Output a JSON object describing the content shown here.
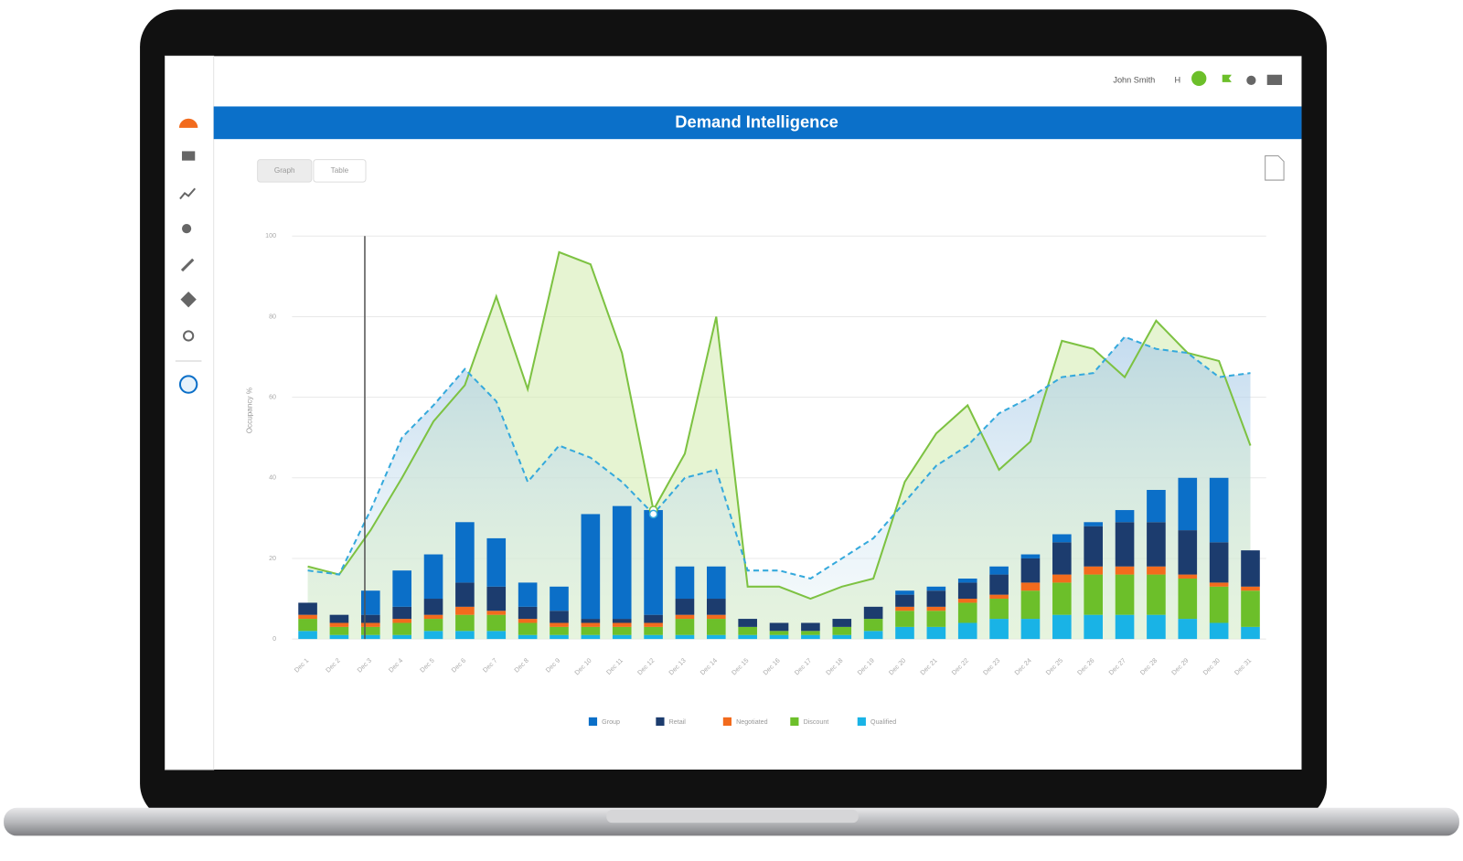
{
  "header": {
    "user": "John Smith",
    "initial": "H",
    "title": "Demand Intelligence",
    "tabs": [
      "Graph",
      "Table"
    ]
  },
  "chart_data": {
    "type": "bar",
    "y_label": "Occupancy %",
    "categories": [
      "Dec 1",
      "Dec 2",
      "Dec 3",
      "Dec 4",
      "Dec 5",
      "Dec 6",
      "Dec 7",
      "Dec 8",
      "Dec 9",
      "Dec 10",
      "Dec 11",
      "Dec 12",
      "Dec 13",
      "Dec 14",
      "Dec 15",
      "Dec 16",
      "Dec 17",
      "Dec 18",
      "Dec 19",
      "Dec 20",
      "Dec 21",
      "Dec 22",
      "Dec 23",
      "Dec 24",
      "Dec 25",
      "Dec 26",
      "Dec 27",
      "Dec 28",
      "Dec 29",
      "Dec 30",
      "Dec 31"
    ],
    "ylim": [
      0,
      100
    ],
    "yticks": [
      0,
      20,
      40,
      60,
      80,
      100
    ],
    "grid": true,
    "stacked": true,
    "series": [
      {
        "name": "Group",
        "color": "#0b6fc8",
        "values": [
          0,
          0,
          6,
          9,
          11,
          15,
          12,
          6,
          6,
          26,
          28,
          26,
          8,
          8,
          0,
          0,
          0,
          0,
          0,
          1,
          1,
          1,
          2,
          1,
          2,
          1,
          3,
          8,
          13,
          16,
          0
        ]
      },
      {
        "name": "Retail",
        "color": "#1c3c6e",
        "values": [
          3,
          2,
          2,
          3,
          4,
          6,
          6,
          3,
          3,
          1,
          1,
          2,
          4,
          4,
          2,
          2,
          2,
          2,
          3,
          3,
          4,
          4,
          5,
          6,
          8,
          10,
          11,
          11,
          11,
          10,
          9
        ]
      },
      {
        "name": "Negotiated",
        "color": "#f26b1d",
        "values": [
          1,
          1,
          1,
          1,
          1,
          2,
          1,
          1,
          1,
          1,
          1,
          1,
          1,
          1,
          0,
          0,
          0,
          0,
          0,
          1,
          1,
          1,
          1,
          2,
          2,
          2,
          2,
          2,
          1,
          1,
          1
        ]
      },
      {
        "name": "Discount",
        "color": "#6cbf2a",
        "values": [
          3,
          2,
          2,
          3,
          3,
          4,
          4,
          3,
          2,
          2,
          2,
          2,
          4,
          4,
          2,
          1,
          1,
          2,
          3,
          4,
          4,
          5,
          5,
          7,
          8,
          10,
          10,
          10,
          10,
          9,
          9
        ]
      },
      {
        "name": "Qualified",
        "color": "#19b3e6",
        "values": [
          2,
          1,
          1,
          1,
          2,
          2,
          2,
          1,
          1,
          1,
          1,
          1,
          1,
          1,
          1,
          1,
          1,
          1,
          2,
          3,
          3,
          4,
          5,
          5,
          6,
          6,
          6,
          6,
          5,
          4,
          3
        ]
      }
    ],
    "lines": [
      {
        "color": "#7dc242",
        "values": [
          18,
          16,
          27,
          40,
          54,
          63,
          85,
          62,
          96,
          93,
          71,
          32,
          46,
          80,
          13,
          13,
          10,
          13,
          15,
          39,
          51,
          58,
          42,
          49,
          74,
          72,
          65,
          79,
          71,
          69,
          48
        ]
      },
      {
        "color": "#35a9dc",
        "dashed": true,
        "values": [
          17,
          16,
          32,
          50,
          58,
          67,
          59,
          39,
          48,
          45,
          39,
          31,
          40,
          42,
          17,
          17,
          15,
          20,
          25,
          34,
          43,
          48,
          56,
          60,
          65,
          66,
          75,
          72,
          71,
          65,
          66
        ]
      }
    ]
  }
}
